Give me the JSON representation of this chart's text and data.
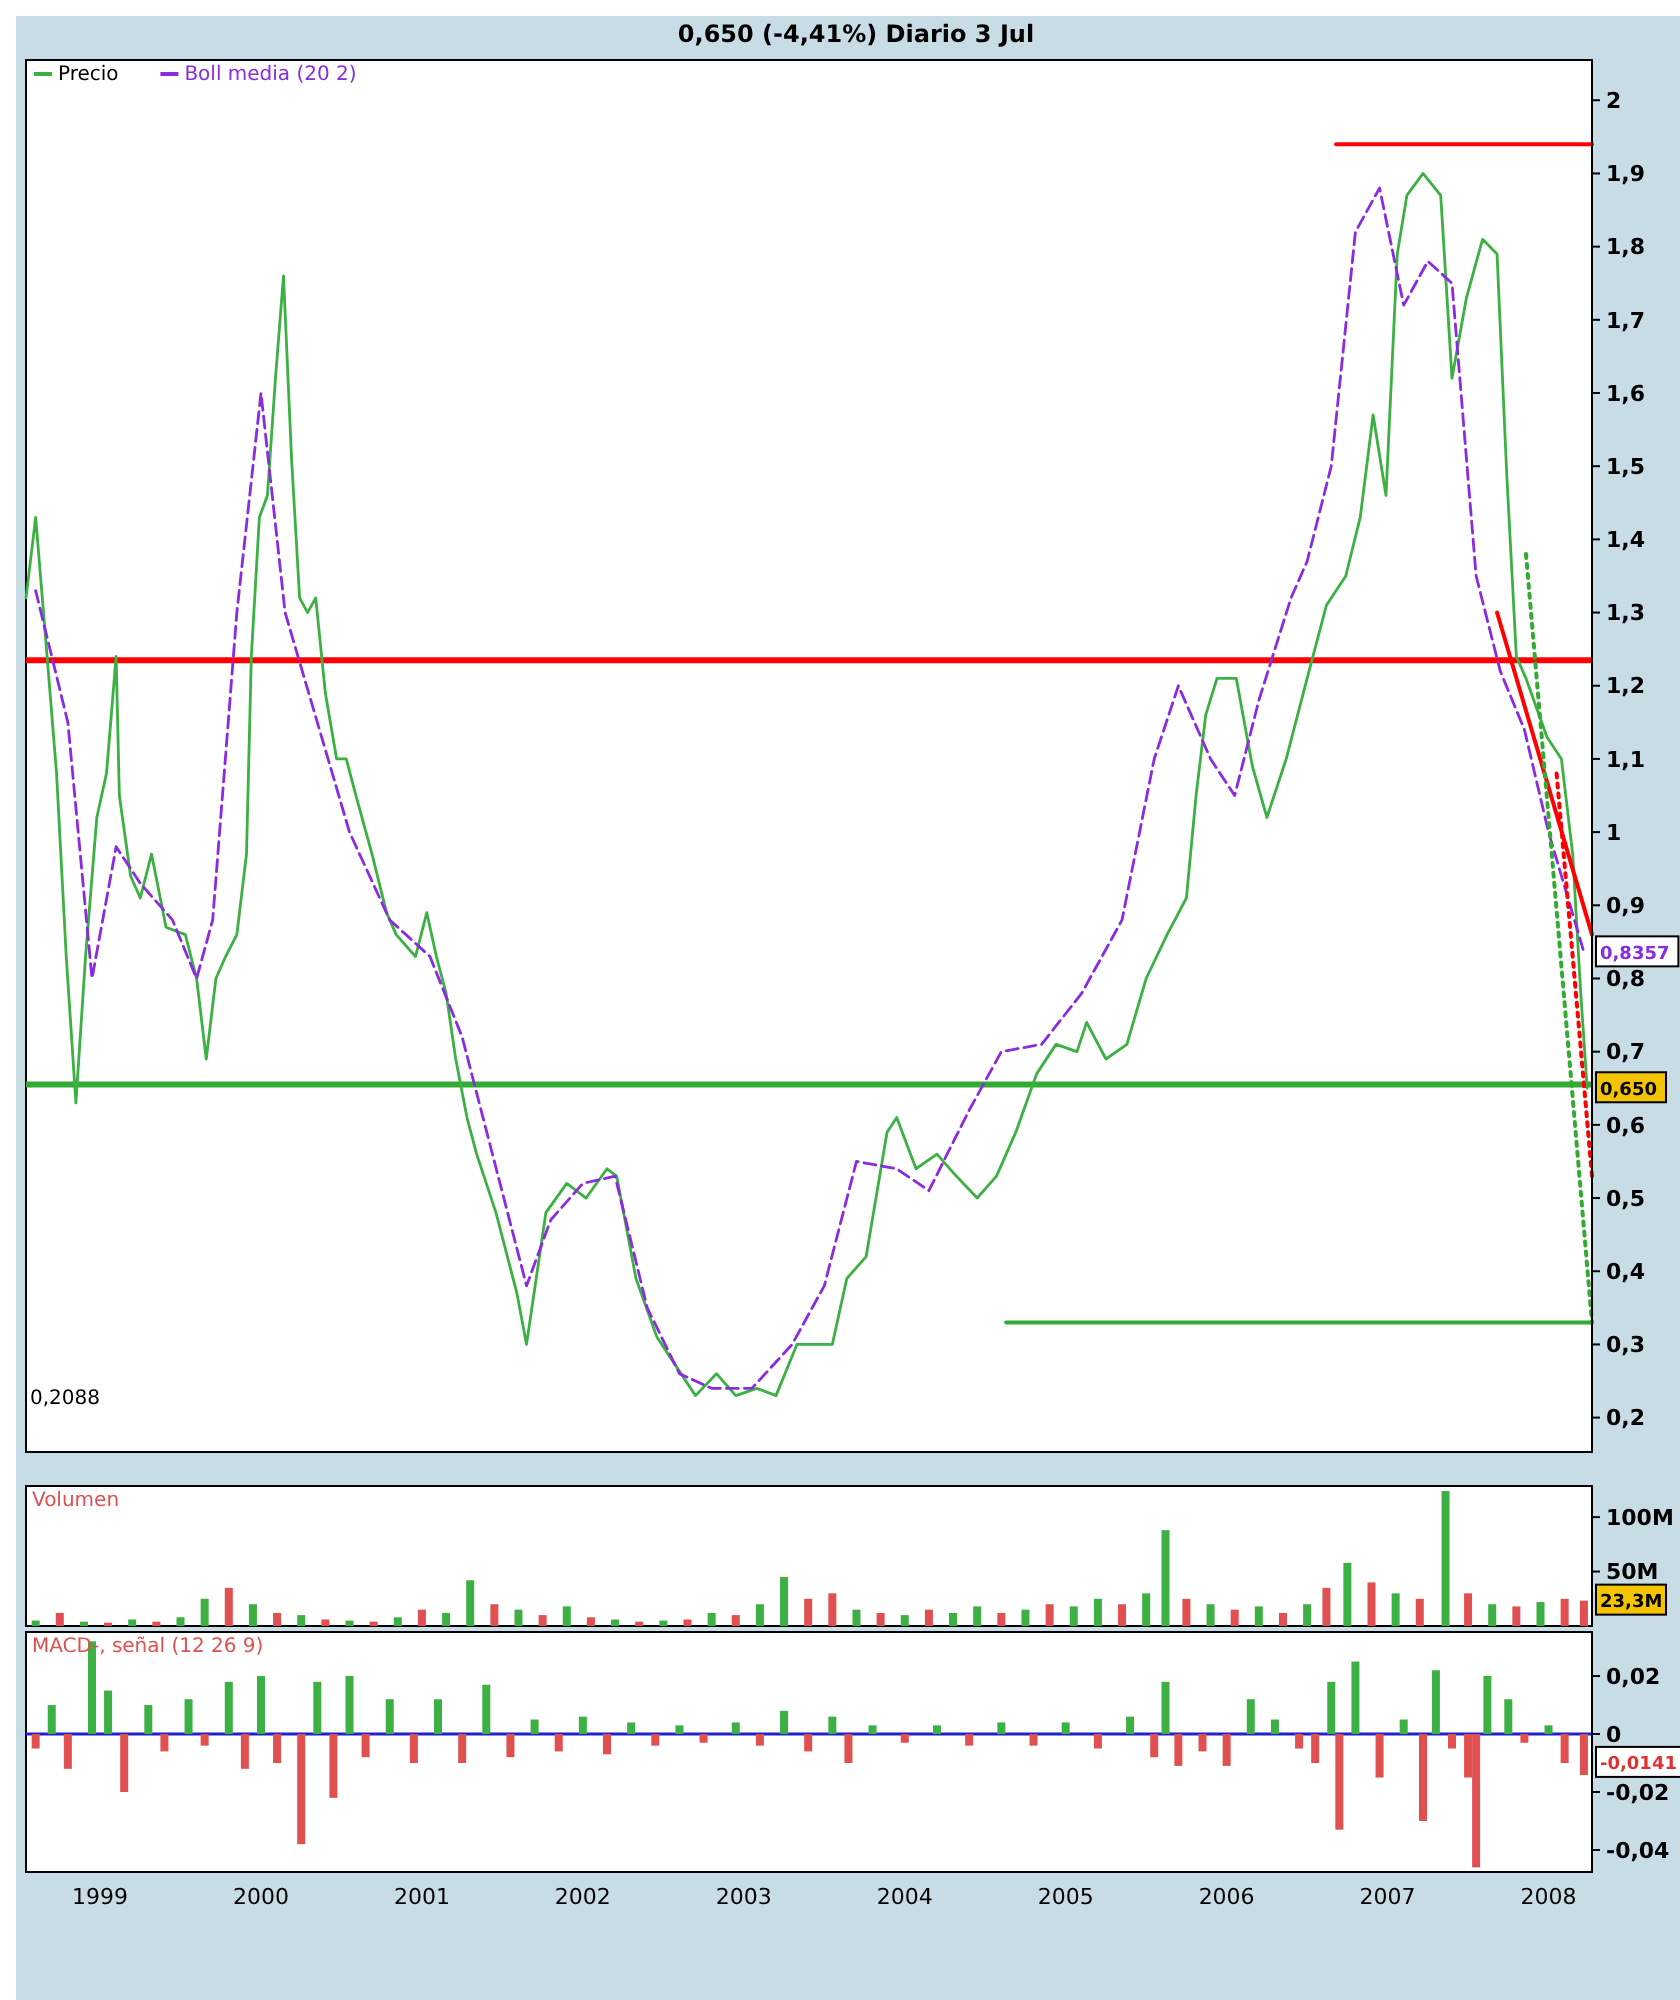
{
  "chart_data": [
    {
      "type": "line",
      "title": "0,650 (-4,41%) Diario 3 Jul",
      "legend": "top left",
      "tick_labels": "y",
      "xlim": [
        1999.04,
        2008.77
      ],
      "ylim": [
        0.153,
        2.055
      ],
      "yticks": [
        {
          "value": 0.2,
          "label": "0,2"
        },
        {
          "value": 0.3,
          "label": "0,3"
        },
        {
          "value": 0.4,
          "label": "0,4"
        },
        {
          "value": 0.5,
          "label": "0,5"
        },
        {
          "value": 0.6,
          "label": "0,6"
        },
        {
          "value": 0.7,
          "label": "0,7"
        },
        {
          "value": 0.8,
          "label": "0,8"
        },
        {
          "value": 0.9,
          "label": "0,9"
        },
        {
          "value": 1,
          "label": "1"
        },
        {
          "value": 1.1,
          "label": "1,1"
        },
        {
          "value": 1.2,
          "label": "1,2"
        },
        {
          "value": 1.3,
          "label": "1,3"
        },
        {
          "value": 1.4,
          "label": "1,4"
        },
        {
          "value": 1.5,
          "label": "1,5"
        },
        {
          "value": 1.6,
          "label": "1,6"
        },
        {
          "value": 1.7,
          "label": "1,7"
        },
        {
          "value": 1.8,
          "label": "1,8"
        },
        {
          "value": 1.9,
          "label": "1,9"
        },
        {
          "value": 2,
          "label": "2"
        }
      ],
      "series": [
        {
          "name": "Precio",
          "color": "#3cb043",
          "x": [
            1999.04,
            1999.1,
            1999.16,
            1999.23,
            1999.29,
            1999.35,
            1999.41,
            1999.48,
            1999.54,
            1999.6,
            1999.62,
            1999.69,
            1999.75,
            1999.82,
            1999.91,
            2000.03,
            2000.1,
            2000.16,
            2000.22,
            2000.28,
            2000.35,
            2000.41,
            2000.44,
            2000.49,
            2000.54,
            2000.59,
            2000.64,
            2000.69,
            2000.74,
            2000.79,
            2000.84,
            2000.9,
            2000.97,
            2001.03,
            2001.09,
            2001.19,
            2001.28,
            2001.34,
            2001.46,
            2001.53,
            2001.59,
            2001.65,
            2001.71,
            2001.78,
            2001.84,
            2001.96,
            2002.09,
            2002.15,
            2002.21,
            2002.27,
            2002.4,
            2002.52,
            2002.65,
            2002.71,
            2002.83,
            2002.96,
            2003.08,
            2003.2,
            2003.33,
            2003.45,
            2003.58,
            2003.7,
            2003.83,
            2003.95,
            2004.05,
            2004.14,
            2004.26,
            2004.39,
            2004.45,
            2004.57,
            2004.7,
            2004.82,
            2004.95,
            2005.07,
            2005.19,
            2005.32,
            2005.44,
            2005.57,
            2005.63,
            2005.75,
            2005.88,
            2006.0,
            2006.13,
            2006.25,
            2006.31,
            2006.37,
            2006.44,
            2006.56,
            2006.66,
            2006.75,
            2006.87,
            2007.0,
            2007.12,
            2007.24,
            2007.33,
            2007.41,
            2007.49,
            2007.56,
            2007.62,
            2007.72,
            2007.83,
            2007.9,
            2007.99,
            2008.09,
            2008.18,
            2008.24,
            2008.3,
            2008.36,
            2008.49,
            2008.58,
            2008.65,
            2008.7,
            2008.74
          ],
          "values": [
            1.32,
            1.43,
            1.27,
            1.08,
            0.83,
            0.63,
            0.83,
            1.02,
            1.08,
            1.24,
            1.05,
            0.94,
            0.91,
            0.97,
            0.87,
            0.86,
            0.8,
            0.69,
            0.8,
            0.83,
            0.86,
            0.97,
            1.24,
            1.43,
            1.46,
            1.62,
            1.76,
            1.51,
            1.32,
            1.3,
            1.32,
            1.19,
            1.1,
            1.1,
            1.05,
            0.97,
            0.89,
            0.86,
            0.83,
            0.89,
            0.83,
            0.78,
            0.69,
            0.61,
            0.56,
            0.48,
            0.37,
            0.3,
            0.39,
            0.48,
            0.52,
            0.5,
            0.54,
            0.53,
            0.39,
            0.31,
            0.27,
            0.23,
            0.26,
            0.23,
            0.24,
            0.23,
            0.3,
            0.3,
            0.3,
            0.39,
            0.42,
            0.59,
            0.61,
            0.54,
            0.56,
            0.53,
            0.5,
            0.53,
            0.59,
            0.67,
            0.71,
            0.7,
            0.74,
            0.69,
            0.71,
            0.8,
            0.86,
            0.91,
            1.05,
            1.16,
            1.21,
            1.21,
            1.09,
            1.02,
            1.1,
            1.21,
            1.31,
            1.35,
            1.43,
            1.57,
            1.46,
            1.79,
            1.87,
            1.9,
            1.87,
            1.62,
            1.73,
            1.81,
            1.79,
            1.49,
            1.24,
            1.21,
            1.13,
            1.1,
            0.97,
            0.78,
            0.65
          ]
        },
        {
          "name": "Boll media (20 2)",
          "color": "#8a2be2",
          "line_style": "dashed",
          "x": [
            1999.1,
            1999.3,
            1999.45,
            1999.6,
            1999.75,
            1999.95,
            2000.1,
            2000.2,
            2000.35,
            2000.5,
            2000.65,
            2000.85,
            2001.05,
            2001.3,
            2001.55,
            2001.75,
            2001.95,
            2002.15,
            2002.3,
            2002.5,
            2002.7,
            2002.9,
            2003.1,
            2003.3,
            2003.55,
            2003.8,
            2004.0,
            2004.2,
            2004.45,
            2004.65,
            2004.9,
            2005.1,
            2005.35,
            2005.6,
            2005.85,
            2006.05,
            2006.2,
            2006.4,
            2006.55,
            2006.7,
            2006.9,
            2007.0,
            2007.15,
            2007.3,
            2007.45,
            2007.6,
            2007.75,
            2007.9,
            2008.05,
            2008.2,
            2008.35,
            2008.5,
            2008.72
          ],
          "values": [
            1.33,
            1.15,
            0.8,
            0.98,
            0.93,
            0.88,
            0.8,
            0.88,
            1.3,
            1.6,
            1.3,
            1.15,
            1.0,
            0.88,
            0.83,
            0.72,
            0.55,
            0.38,
            0.47,
            0.52,
            0.53,
            0.35,
            0.26,
            0.24,
            0.24,
            0.3,
            0.38,
            0.55,
            0.54,
            0.51,
            0.62,
            0.7,
            0.71,
            0.78,
            0.88,
            1.1,
            1.2,
            1.1,
            1.05,
            1.18,
            1.32,
            1.37,
            1.5,
            1.82,
            1.88,
            1.72,
            1.78,
            1.75,
            1.35,
            1.22,
            1.14,
            1.0,
            0.8357
          ]
        },
        {
          "type": "line",
          "color": "#ff0000",
          "x": [
            2007.18,
            2008.77
          ],
          "values": [
            1.94,
            1.94
          ]
        },
        {
          "type": "line",
          "color": "#33aa33",
          "x": [
            2005.13,
            2008.77
          ],
          "values": [
            0.33,
            0.33
          ]
        },
        {
          "type": "line",
          "color": "#ff0000",
          "x": [
            2008.18,
            2008.77
          ],
          "values": [
            1.3,
            0.86
          ]
        },
        {
          "type": "line",
          "color": "#33aa33",
          "line_style": "dotted",
          "x": [
            2008.36,
            2008.77
          ],
          "values": [
            1.38,
            0.33
          ]
        },
        {
          "type": "line",
          "color": "#ff0000",
          "line_style": "dotted",
          "x": [
            2008.55,
            2008.77
          ],
          "values": [
            1.08,
            0.53
          ]
        }
      ],
      "ref_lines": [
        {
          "axis": "y",
          "value": 1.235,
          "color": "#ff0000"
        },
        {
          "axis": "y",
          "value": 0.655,
          "color": "#33aa33"
        }
      ],
      "annotations": [
        "0,2088",
        "0,8357",
        "0,650"
      ]
    },
    {
      "type": "bar",
      "title": "Volumen",
      "tick_labels": "y",
      "xlim": [
        1999.04,
        2008.77
      ],
      "ylim": [
        0,
        128.6
      ],
      "yticks": [
        {
          "value": 50,
          "label": "50M"
        },
        {
          "value": 100,
          "label": "100M"
        }
      ],
      "x": [
        1999.1,
        1999.25,
        1999.4,
        1999.55,
        1999.7,
        1999.85,
        2000.0,
        2000.15,
        2000.3,
        2000.45,
        2000.6,
        2000.75,
        2000.9,
        2001.05,
        2001.2,
        2001.35,
        2001.5,
        2001.65,
        2001.8,
        2001.95,
        2002.1,
        2002.25,
        2002.4,
        2002.55,
        2002.7,
        2002.85,
        2003.0,
        2003.15,
        2003.3,
        2003.45,
        2003.6,
        2003.75,
        2003.9,
        2004.05,
        2004.2,
        2004.35,
        2004.5,
        2004.65,
        2004.8,
        2004.95,
        2005.1,
        2005.25,
        2005.4,
        2005.55,
        2005.7,
        2005.85,
        2006.0,
        2006.12,
        2006.25,
        2006.4,
        2006.55,
        2006.7,
        2006.85,
        2007.0,
        2007.12,
        2007.25,
        2007.4,
        2007.55,
        2007.7,
        2007.86,
        2008.0,
        2008.15,
        2008.3,
        2008.45,
        2008.6,
        2008.72
      ],
      "values": [
        5,
        12,
        4,
        3,
        6,
        4,
        8,
        25,
        35,
        20,
        12,
        10,
        6,
        5,
        4,
        8,
        15,
        12,
        42,
        20,
        15,
        10,
        18,
        8,
        6,
        4,
        5,
        6,
        12,
        10,
        20,
        45,
        25,
        30,
        15,
        12,
        10,
        15,
        12,
        18,
        12,
        15,
        20,
        18,
        25,
        20,
        30,
        88,
        25,
        20,
        15,
        18,
        12,
        20,
        35,
        58,
        40,
        30,
        25,
        124,
        30,
        20,
        18,
        22,
        25,
        23.3
      ],
      "colors": [
        "#3cb043",
        "#e05050",
        "#3cb043",
        "#e05050",
        "#3cb043",
        "#e05050",
        "#3cb043",
        "#3cb043",
        "#e05050",
        "#3cb043",
        "#e05050",
        "#3cb043",
        "#e05050",
        "#3cb043",
        "#e05050",
        "#3cb043",
        "#e05050",
        "#3cb043",
        "#3cb043",
        "#e05050",
        "#3cb043",
        "#e05050",
        "#3cb043",
        "#e05050",
        "#3cb043",
        "#e05050",
        "#3cb043",
        "#e05050",
        "#3cb043",
        "#e05050",
        "#3cb043",
        "#3cb043",
        "#e05050",
        "#e05050",
        "#3cb043",
        "#e05050",
        "#3cb043",
        "#e05050",
        "#3cb043",
        "#3cb043",
        "#e05050",
        "#3cb043",
        "#e05050",
        "#3cb043",
        "#3cb043",
        "#e05050",
        "#3cb043",
        "#3cb043",
        "#e05050",
        "#3cb043",
        "#e05050",
        "#3cb043",
        "#e05050",
        "#3cb043",
        "#e05050",
        "#3cb043",
        "#e05050",
        "#3cb043",
        "#e05050",
        "#3cb043",
        "#e05050",
        "#3cb043",
        "#e05050",
        "#3cb043",
        "#e05050",
        "#e05050"
      ],
      "annotations": [
        "23,3M"
      ]
    },
    {
      "type": "bar",
      "title": "MACD-, señal (12 26 9)",
      "xlim": [
        1999.04,
        2008.77
      ],
      "xticks": [
        {
          "value": 1999.5,
          "label": "1999"
        },
        {
          "value": 2000.5,
          "label": "2000"
        },
        {
          "value": 2001.5,
          "label": "2001"
        },
        {
          "value": 2002.5,
          "label": "2002"
        },
        {
          "value": 2003.5,
          "label": "2003"
        },
        {
          "value": 2004.5,
          "label": "2004"
        },
        {
          "value": 2005.5,
          "label": "2005"
        },
        {
          "value": 2006.5,
          "label": "2006"
        },
        {
          "value": 2007.5,
          "label": "2007"
        },
        {
          "value": 2008.5,
          "label": "2008"
        }
      ],
      "ylim": [
        -0.0476,
        0.0352
      ],
      "yticks": [
        {
          "value": -0.04,
          "label": "-0,04"
        },
        {
          "value": -0.02,
          "label": "-0,02"
        },
        {
          "value": 0,
          "label": "0"
        },
        {
          "value": 0.02,
          "label": "0,02"
        }
      ],
      "x": [
        1999.1,
        1999.2,
        1999.3,
        1999.45,
        1999.55,
        1999.65,
        1999.8,
        1999.9,
        2000.05,
        2000.15,
        2000.3,
        2000.4,
        2000.5,
        2000.6,
        2000.75,
        2000.85,
        2000.95,
        2001.05,
        2001.15,
        2001.3,
        2001.45,
        2001.6,
        2001.75,
        2001.9,
        2002.05,
        2002.2,
        2002.35,
        2002.5,
        2002.65,
        2002.8,
        2002.95,
        2003.1,
        2003.25,
        2003.45,
        2003.6,
        2003.75,
        2003.9,
        2004.05,
        2004.15,
        2004.3,
        2004.5,
        2004.7,
        2004.9,
        2005.1,
        2005.3,
        2005.5,
        2005.7,
        2005.9,
        2006.05,
        2006.12,
        2006.2,
        2006.35,
        2006.5,
        2006.65,
        2006.8,
        2006.95,
        2007.05,
        2007.15,
        2007.2,
        2007.3,
        2007.45,
        2007.6,
        2007.72,
        2007.8,
        2007.9,
        2008.0,
        2008.05,
        2008.12,
        2008.25,
        2008.35,
        2008.5,
        2008.6,
        2008.72
      ],
      "values": [
        -0.005,
        0.01,
        -0.012,
        0.032,
        0.015,
        -0.02,
        0.01,
        -0.006,
        0.012,
        -0.004,
        0.018,
        -0.012,
        0.02,
        -0.01,
        -0.038,
        0.018,
        -0.022,
        0.02,
        -0.008,
        0.012,
        -0.01,
        0.012,
        -0.01,
        0.017,
        -0.008,
        0.005,
        -0.006,
        0.006,
        -0.007,
        0.004,
        -0.004,
        0.003,
        -0.003,
        0.004,
        -0.004,
        0.008,
        -0.006,
        0.006,
        -0.01,
        0.003,
        -0.003,
        0.003,
        -0.004,
        0.004,
        -0.004,
        0.004,
        -0.005,
        0.006,
        -0.008,
        0.018,
        -0.011,
        -0.006,
        -0.011,
        0.012,
        0.005,
        -0.005,
        -0.01,
        0.018,
        -0.033,
        0.025,
        -0.015,
        0.005,
        -0.03,
        0.022,
        -0.005,
        -0.015,
        -0.046,
        0.02,
        0.012,
        -0.003,
        0.003,
        -0.01,
        -0.0141
      ],
      "colors": [
        "#e05050",
        "#3cb043",
        "#e05050",
        "#3cb043",
        "#3cb043",
        "#e05050",
        "#3cb043",
        "#e05050",
        "#3cb043",
        "#e05050",
        "#3cb043",
        "#e05050",
        "#3cb043",
        "#e05050",
        "#e05050",
        "#3cb043",
        "#e05050",
        "#3cb043",
        "#e05050",
        "#3cb043",
        "#e05050",
        "#3cb043",
        "#e05050",
        "#3cb043",
        "#e05050",
        "#3cb043",
        "#e05050",
        "#3cb043",
        "#e05050",
        "#3cb043",
        "#e05050",
        "#3cb043",
        "#e05050",
        "#3cb043",
        "#e05050",
        "#3cb043",
        "#e05050",
        "#3cb043",
        "#e05050",
        "#3cb043",
        "#e05050",
        "#3cb043",
        "#e05050",
        "#3cb043",
        "#e05050",
        "#3cb043",
        "#e05050",
        "#3cb043",
        "#e05050",
        "#3cb043",
        "#e05050",
        "#e05050",
        "#e05050",
        "#3cb043",
        "#3cb043",
        "#e05050",
        "#e05050",
        "#3cb043",
        "#e05050",
        "#3cb043",
        "#e05050",
        "#3cb043",
        "#e05050",
        "#3cb043",
        "#e05050",
        "#e05050",
        "#e05050",
        "#3cb043",
        "#3cb043",
        "#e05050",
        "#3cb043",
        "#e05050",
        "#e05050"
      ],
      "ref_lines": [
        {
          "axis": "y",
          "value": 0,
          "color": "#2020d0"
        }
      ],
      "annotations": [
        "-0,0141"
      ]
    }
  ]
}
